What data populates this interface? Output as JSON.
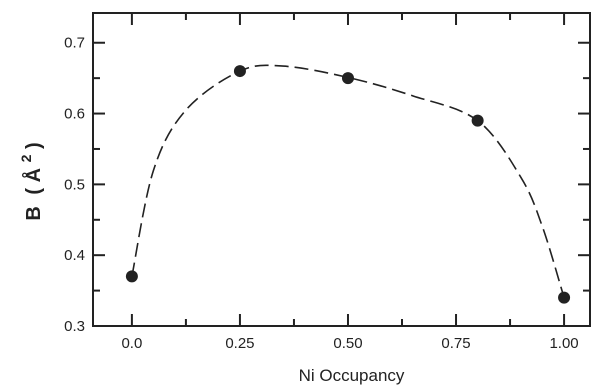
{
  "chart_data": {
    "type": "scatter",
    "title": "",
    "xlabel": "Ni Occupancy",
    "ylabel": "B (Å²)",
    "ylabel_parts": {
      "symbol": "B",
      "open": "(",
      "angstrom": "Å",
      "power": "2",
      "close": ")"
    },
    "xlim": [
      -0.09,
      1.06
    ],
    "ylim": [
      0.3,
      0.742
    ],
    "x_ticks": [
      0.0,
      0.25,
      0.5,
      0.75,
      1.0
    ],
    "x_tick_labels": [
      "0.0",
      "0.25",
      "0.50",
      "0.75",
      "1.00"
    ],
    "y_ticks": [
      0.3,
      0.4,
      0.5,
      0.6,
      0.7
    ],
    "y_tick_labels": [
      "0.3",
      "0.4",
      "0.5",
      "0.6",
      "0.7"
    ],
    "grid": false,
    "series": [
      {
        "points": [
          {
            "x": 0.0,
            "y": 0.37
          },
          {
            "x": 0.25,
            "y": 0.66
          },
          {
            "x": 0.5,
            "y": 0.65
          },
          {
            "x": 0.8,
            "y": 0.59
          },
          {
            "x": 1.0,
            "y": 0.34
          }
        ]
      }
    ],
    "fit_curve": {
      "style": "dashed",
      "points": [
        {
          "x": 0.0,
          "y": 0.37
        },
        {
          "x": 0.05,
          "y": 0.52
        },
        {
          "x": 0.125,
          "y": 0.605
        },
        {
          "x": 0.25,
          "y": 0.66
        },
        {
          "x": 0.35,
          "y": 0.667
        },
        {
          "x": 0.5,
          "y": 0.651
        },
        {
          "x": 0.65,
          "y": 0.625
        },
        {
          "x": 0.8,
          "y": 0.59
        },
        {
          "x": 0.9,
          "y": 0.51
        },
        {
          "x": 0.95,
          "y": 0.44
        },
        {
          "x": 1.0,
          "y": 0.34
        }
      ]
    },
    "colors": {
      "marker": "#222222",
      "axes": "#222222",
      "curve": "#222222"
    }
  }
}
